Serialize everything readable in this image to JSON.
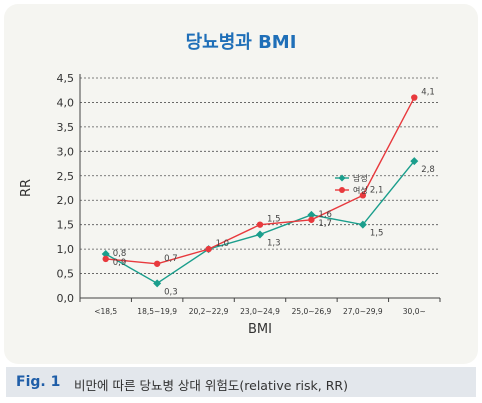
{
  "chart_data": {
    "type": "line",
    "title": "당뇨병과 BMI",
    "xlabel": "BMI",
    "ylabel": "RR",
    "categories": [
      "<18,5",
      "18,5~19,9",
      "20,2~22,9",
      "23,0~24,9",
      "25,0~26,9",
      "27,0~29,9",
      "30,0~"
    ],
    "yticks": [
      "0,0",
      "0,5",
      "1,0",
      "1,5",
      "2,0",
      "2,5",
      "3,0",
      "3,5",
      "4,0",
      "4,5"
    ],
    "ylim": [
      0,
      4.5
    ],
    "grid": "horizontal dashed",
    "legend_position": "center-right",
    "series": [
      {
        "name": "남성",
        "color": "#1a9e8c",
        "marker": "diamond",
        "values": [
          0.9,
          0.3,
          1.0,
          1.3,
          1.7,
          1.5,
          2.8
        ],
        "labels": [
          "0,9",
          "0,3",
          "",
          "1,3",
          "1,7",
          "1,5",
          "2,8"
        ]
      },
      {
        "name": "여성",
        "color": "#e8393d",
        "marker": "circle",
        "values": [
          0.8,
          0.7,
          1.0,
          1.5,
          1.6,
          2.1,
          4.1
        ],
        "labels": [
          "0,8",
          "0,7",
          "1,0",
          "1,5",
          "1,6",
          "2,1",
          "4,1"
        ]
      }
    ]
  },
  "caption": {
    "label": "Fig. 1",
    "text": "비만에 따른 당뇨병 상대 위험도(relative risk, RR)"
  }
}
